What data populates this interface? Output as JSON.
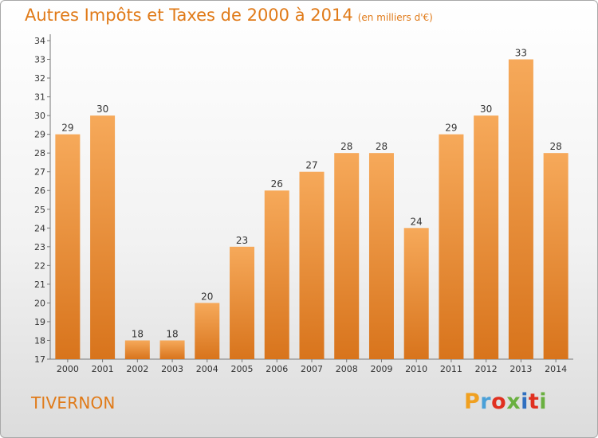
{
  "header": {
    "title": "Autres Impôts et Taxes de 2000 à 2014",
    "unit": "(en milliers d'€)"
  },
  "footer": {
    "commune": "TIVERNON",
    "logo": "Proxiti"
  },
  "colors": {
    "bar_light": "#f6a95a",
    "bar_dark": "#d8741c",
    "title": "#e07a18"
  },
  "chart_data": {
    "type": "bar",
    "title": "Autres Impôts et Taxes de 2000 à 2014",
    "subtitle": "(en milliers d'€)",
    "categories": [
      "2000",
      "2001",
      "2002",
      "2003",
      "2004",
      "2005",
      "2006",
      "2007",
      "2008",
      "2009",
      "2010",
      "2011",
      "2012",
      "2013",
      "2014"
    ],
    "values": [
      29,
      30,
      18,
      18,
      20,
      23,
      26,
      27,
      28,
      28,
      24,
      29,
      30,
      33,
      28
    ],
    "ylim": [
      17,
      34
    ],
    "yticks": [
      17,
      18,
      19,
      20,
      21,
      22,
      23,
      24,
      25,
      26,
      27,
      28,
      29,
      30,
      31,
      32,
      33,
      34
    ],
    "grid": false,
    "legend": "none"
  }
}
